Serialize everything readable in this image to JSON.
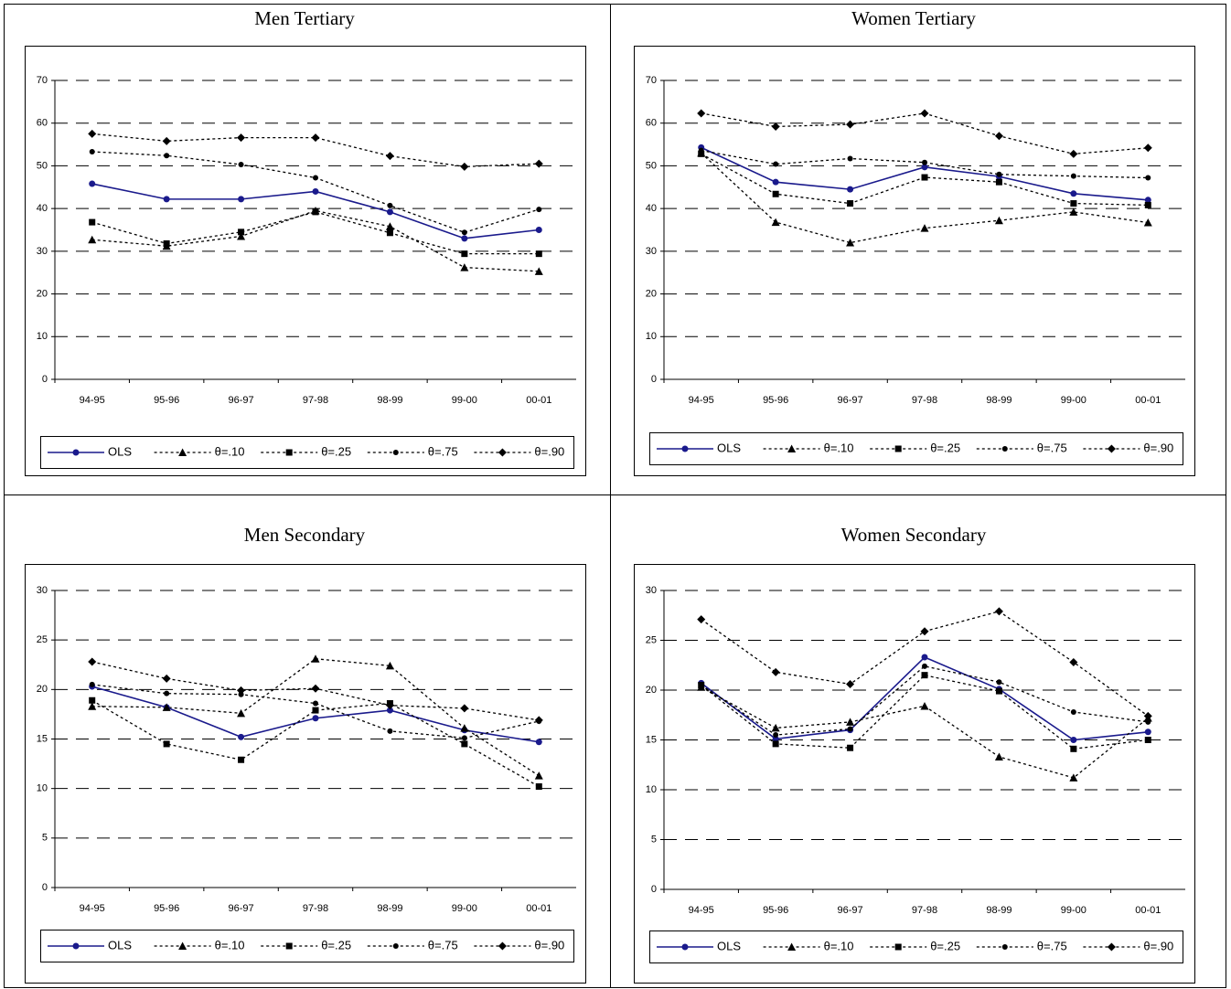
{
  "chart_data": [
    {
      "type": "line",
      "title": "Men Tertiary",
      "categories": [
        "94-95",
        "95-96",
        "96-97",
        "97-98",
        "98-99",
        "99-00",
        "00-01"
      ],
      "ylim": [
        0,
        70
      ],
      "yticks": [
        0,
        10,
        20,
        30,
        40,
        50,
        60,
        70
      ],
      "grid": true,
      "series": [
        {
          "name": "OLS",
          "color": "#1a1a8c",
          "style": "solid",
          "marker": "circle",
          "values": [
            45.8,
            42.2,
            42.2,
            44,
            39.2,
            33,
            35
          ]
        },
        {
          "name": "θ=.10",
          "color": "#000000",
          "style": "dotted",
          "marker": "triangle",
          "values": [
            32.7,
            31.2,
            33.5,
            39.5,
            35.8,
            26.2,
            25.3
          ]
        },
        {
          "name": "θ=.25",
          "color": "#000000",
          "style": "dotted",
          "marker": "square",
          "values": [
            36.8,
            31.8,
            34.5,
            39.2,
            34.3,
            29.4,
            29.4
          ]
        },
        {
          "name": "θ=.75",
          "color": "#000000",
          "style": "dotted",
          "marker": "dot",
          "values": [
            53.3,
            52.4,
            50.3,
            47.2,
            40.7,
            34.4,
            39.8
          ]
        },
        {
          "name": "θ=.90",
          "color": "#000000",
          "style": "dotted",
          "marker": "diamond",
          "values": [
            57.5,
            55.8,
            56.6,
            56.6,
            52.3,
            49.8,
            50.5
          ]
        }
      ]
    },
    {
      "type": "line",
      "title": "Women Tertiary",
      "categories": [
        "94-95",
        "95-96",
        "96-97",
        "97-98",
        "98-99",
        "99-00",
        "00-01"
      ],
      "ylim": [
        0,
        70
      ],
      "yticks": [
        0,
        10,
        20,
        30,
        40,
        50,
        60,
        70
      ],
      "grid": true,
      "series": [
        {
          "name": "OLS",
          "color": "#1a1a8c",
          "style": "solid",
          "marker": "circle",
          "values": [
            54.3,
            46.2,
            44.5,
            49.7,
            47.5,
            43.5,
            42
          ]
        },
        {
          "name": "θ=.10",
          "color": "#000000",
          "style": "dotted",
          "marker": "triangle",
          "values": [
            53,
            36.8,
            32,
            35.4,
            37.2,
            39.2,
            36.7
          ]
        },
        {
          "name": "θ=.25",
          "color": "#000000",
          "style": "dotted",
          "marker": "square",
          "values": [
            52.8,
            43.4,
            41.2,
            47.3,
            46.2,
            41.2,
            40.8
          ]
        },
        {
          "name": "θ=.75",
          "color": "#000000",
          "style": "dotted",
          "marker": "dot",
          "values": [
            53.6,
            50.4,
            51.7,
            50.8,
            48,
            47.6,
            47.2
          ]
        },
        {
          "name": "θ=.90",
          "color": "#000000",
          "style": "dotted",
          "marker": "diamond",
          "values": [
            62.3,
            59.2,
            59.7,
            62.3,
            57,
            52.8,
            54.2
          ]
        }
      ]
    },
    {
      "type": "line",
      "title": "Men Secondary",
      "categories": [
        "94-95",
        "95-96",
        "96-97",
        "97-98",
        "98-99",
        "99-00",
        "00-01"
      ],
      "ylim": [
        0,
        30
      ],
      "yticks": [
        0,
        5,
        10,
        15,
        20,
        25,
        30
      ],
      "grid": true,
      "series": [
        {
          "name": "OLS",
          "color": "#1a1a8c",
          "style": "solid",
          "marker": "circle",
          "values": [
            20.3,
            18.2,
            15.2,
            17.1,
            17.9,
            15.9,
            14.7
          ]
        },
        {
          "name": "θ=.10",
          "color": "#000000",
          "style": "dotted",
          "marker": "triangle",
          "values": [
            18.3,
            18.2,
            17.6,
            23.1,
            22.4,
            16.1,
            11.3
          ]
        },
        {
          "name": "θ=.25",
          "color": "#000000",
          "style": "dotted",
          "marker": "square",
          "values": [
            18.9,
            14.5,
            12.9,
            17.9,
            18.6,
            14.5,
            10.2
          ]
        },
        {
          "name": "θ=.75",
          "color": "#000000",
          "style": "dotted",
          "marker": "dot",
          "values": [
            20.5,
            19.6,
            19.5,
            18.6,
            15.8,
            15.1,
            16.8
          ]
        },
        {
          "name": "θ=.90",
          "color": "#000000",
          "style": "dotted",
          "marker": "diamond",
          "values": [
            22.8,
            21.1,
            19.9,
            20.1,
            18.4,
            18.1,
            16.9
          ]
        }
      ]
    },
    {
      "type": "line",
      "title": "Women Secondary",
      "categories": [
        "94-95",
        "95-96",
        "96-97",
        "97-98",
        "98-99",
        "99-00",
        "00-01"
      ],
      "ylim": [
        0,
        30
      ],
      "yticks": [
        0,
        5,
        10,
        15,
        20,
        25,
        30
      ],
      "grid": true,
      "series": [
        {
          "name": "OLS",
          "color": "#1a1a8c",
          "style": "solid",
          "marker": "circle",
          "values": [
            20.7,
            15.1,
            16,
            23.3,
            20.1,
            15,
            15.8
          ]
        },
        {
          "name": "θ=.10",
          "color": "#000000",
          "style": "dotted",
          "marker": "triangle",
          "values": [
            20.3,
            16.2,
            16.8,
            18.4,
            13.3,
            11.2,
            17.2
          ]
        },
        {
          "name": "θ=.25",
          "color": "#000000",
          "style": "dotted",
          "marker": "square",
          "values": [
            20.5,
            14.6,
            14.2,
            21.5,
            19.9,
            14.1,
            15
          ]
        },
        {
          "name": "θ=.75",
          "color": "#000000",
          "style": "dotted",
          "marker": "dot",
          "values": [
            20.5,
            15.5,
            16.1,
            22.4,
            20.8,
            17.8,
            16.8
          ]
        },
        {
          "name": "θ=.90",
          "color": "#000000",
          "style": "dotted",
          "marker": "diamond",
          "values": [
            27.1,
            21.8,
            20.6,
            25.9,
            27.9,
            22.8,
            17.4
          ]
        }
      ]
    }
  ]
}
